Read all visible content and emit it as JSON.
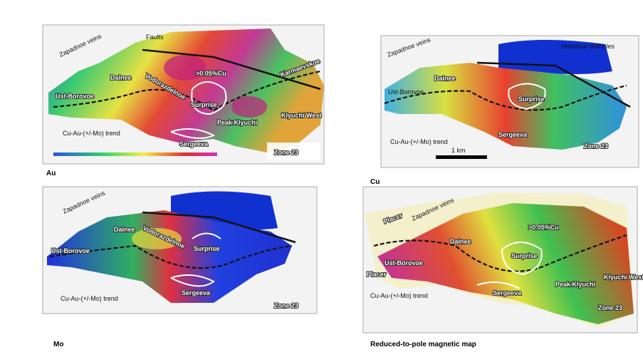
{
  "panels": [
    {
      "caption": "Au",
      "labels": [
        "Zapadnoe veins",
        "Faults",
        ">0.05%Cu",
        "Dalnee",
        "Vodorazdelnoe",
        "Karmaevskoe",
        "Ust-Borovoe",
        "Surprise",
        "Klyuchi West",
        "Peak Klyuchi",
        "Cu-Au-(+/-Mo) trend",
        "Sergeeva",
        "Zone 23"
      ]
    },
    {
      "caption": "Cu",
      "labels": [
        "Zapadnoe veins",
        "Historical drillholes",
        "Dalnee",
        "Ust-Borovoe",
        "Surprise",
        "Cu-Au-(+/-Mo) trend",
        "1 km",
        "Sergeeva",
        "Zone 23"
      ]
    },
    {
      "caption": "Mo",
      "labels": [
        "Zapadnoe veins",
        "Dalnee",
        "Vodorazdelnoe",
        "Ust-Borovoe",
        "Surprise",
        "Cu-Au-(+/-Mo) trend",
        "Sergeeva",
        "Zone 23"
      ]
    },
    {
      "caption": "Reduced-to-pole magnetic map",
      "labels": [
        "Zapadnoe veins",
        "Placer",
        ">0.05%Cu",
        "Dalnee",
        "Ust-Borovoe",
        "Surprise",
        "Placer",
        "Peak Klyuchi",
        "Klyuchi West",
        "Cu-Au-(+/-Mo) trend",
        "Sergeeva",
        "Zone 23"
      ]
    }
  ]
}
